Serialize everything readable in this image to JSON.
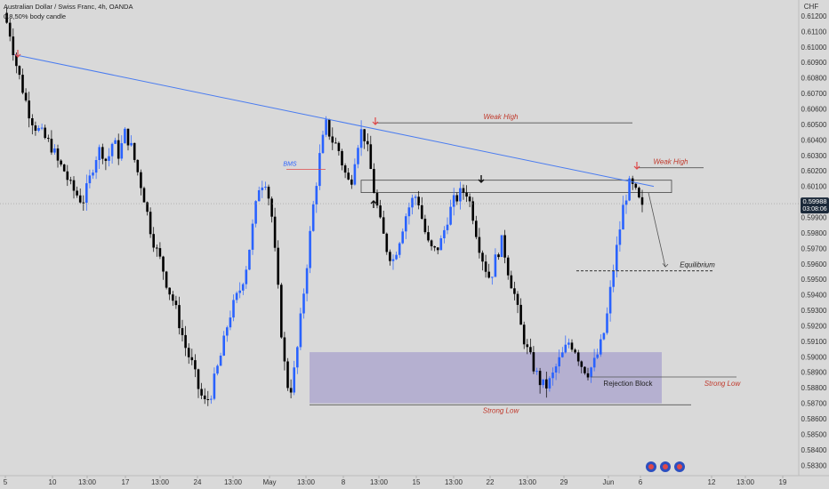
{
  "header": {
    "title": "Australian Dollar / Swiss Franc, 4h, OANDA",
    "subtitle": "0.8,50% body candle"
  },
  "chart_data": {
    "type": "candlestick",
    "currency": "CHF",
    "y_ticks": [
      "0.61200",
      "0.61100",
      "0.61000",
      "0.60900",
      "0.60800",
      "0.60700",
      "0.60600",
      "0.60500",
      "0.60400",
      "0.60300",
      "0.60200",
      "0.60100",
      "0.59900",
      "0.59800",
      "0.59700",
      "0.59600",
      "0.59500",
      "0.59400",
      "0.59300",
      "0.59200",
      "0.59100",
      "0.59000",
      "0.58900",
      "0.58800",
      "0.58700",
      "0.58600",
      "0.58500",
      "0.58400",
      "0.58300"
    ],
    "ylim": [
      0.5825,
      0.6128
    ],
    "x_ticks": [
      "5",
      "10",
      "13:00",
      "17",
      "13:00",
      "24",
      "13:00",
      "May",
      "13:00",
      "8",
      "13:00",
      "15",
      "13:00",
      "22",
      "13:00",
      "29",
      "Jun",
      "6",
      "12",
      "13:00",
      "19"
    ],
    "current_price": "0.59988",
    "countdown": "03:08:06",
    "close_path": [
      0.6122,
      0.611,
      0.609,
      0.6075,
      0.606,
      0.605,
      0.6045,
      0.604,
      0.6035,
      0.6025,
      0.602,
      0.601,
      0.6005,
      0.6,
      0.6012,
      0.6028,
      0.6035,
      0.6025,
      0.604,
      0.603,
      0.6045,
      0.6035,
      0.602,
      0.6005,
      0.5985,
      0.597,
      0.596,
      0.5945,
      0.5935,
      0.592,
      0.5905,
      0.5895,
      0.588,
      0.587,
      0.5875,
      0.589,
      0.5905,
      0.5925,
      0.5935,
      0.5945,
      0.596,
      0.5985,
      0.601,
      0.6015,
      0.5995,
      0.595,
      0.59,
      0.5875,
      0.5895,
      0.593,
      0.5965,
      0.6,
      0.603,
      0.605,
      0.604,
      0.6035,
      0.602,
      0.601,
      0.6035,
      0.6048,
      0.603,
      0.6005,
      0.5985,
      0.597,
      0.5962,
      0.5975,
      0.599,
      0.6,
      0.6005,
      0.5985,
      0.597,
      0.5968,
      0.5975,
      0.599,
      0.6,
      0.6005,
      0.6008,
      0.5995,
      0.5975,
      0.596,
      0.595,
      0.5965,
      0.5975,
      0.5955,
      0.594,
      0.592,
      0.5905,
      0.5895,
      0.5885,
      0.588,
      0.5885,
      0.5895,
      0.5902,
      0.591,
      0.5905,
      0.5895,
      0.589,
      0.5895,
      0.5905,
      0.592,
      0.595,
      0.5975,
      0.6,
      0.6012,
      0.6005,
      0.5995
    ],
    "ohlc_scale": "close values estimated from candle bodies",
    "annotations": {
      "weak_high_1": "Weak High",
      "weak_high_2": "Weak High",
      "bms": "BMS",
      "equilibrium": "Equilibrium",
      "rejection_block": "Rejection Block",
      "strong_low_1": "Strong Low",
      "strong_low_2": "Strong Low"
    },
    "levels": {
      "weak_high_1": 0.6051,
      "weak_high_2": 0.6022,
      "bms": 0.6021,
      "equilibrium": 0.59555,
      "strong_low": 0.5869,
      "rejection_block": 0.5887,
      "demand_zone": [
        0.587,
        0.5903
      ],
      "resistance_box": [
        0.6006,
        0.6014
      ],
      "trendline": [
        0.6095,
        0.601
      ]
    },
    "colors": {
      "up": "#2962ff",
      "down": "#000000",
      "trendline": "#4a7cf0",
      "zone": "#a8a2cc",
      "annotation_red": "#c0392b",
      "price_badge": "#1c2a3a"
    }
  }
}
